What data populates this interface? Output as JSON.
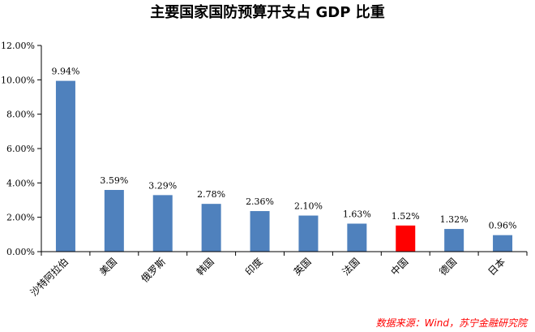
{
  "chart_data": {
    "type": "bar",
    "title": "主要国家国防预算开支占 GDP 比重",
    "categories": [
      "沙特阿拉伯",
      "美国",
      "俄罗斯",
      "韩国",
      "印度",
      "英国",
      "法国",
      "中国",
      "德国",
      "日本"
    ],
    "values": [
      9.94,
      3.59,
      3.29,
      2.78,
      2.36,
      2.1,
      1.63,
      1.52,
      1.32,
      0.96
    ],
    "value_labels": [
      "9.94%",
      "3.59%",
      "3.29%",
      "2.78%",
      "2.36%",
      "2.10%",
      "1.63%",
      "1.52%",
      "1.32%",
      "0.96%"
    ],
    "y_ticks": [
      "0.00%",
      "2.00%",
      "4.00%",
      "6.00%",
      "8.00%",
      "10.00%",
      "12.00%"
    ],
    "ylim": [
      0,
      12
    ],
    "bar_color": "#4f81bd",
    "highlight_category": "中国",
    "highlight_color": "#ff0000",
    "grid": false,
    "source": "数据来源：Wind，苏宁金融研究院"
  }
}
